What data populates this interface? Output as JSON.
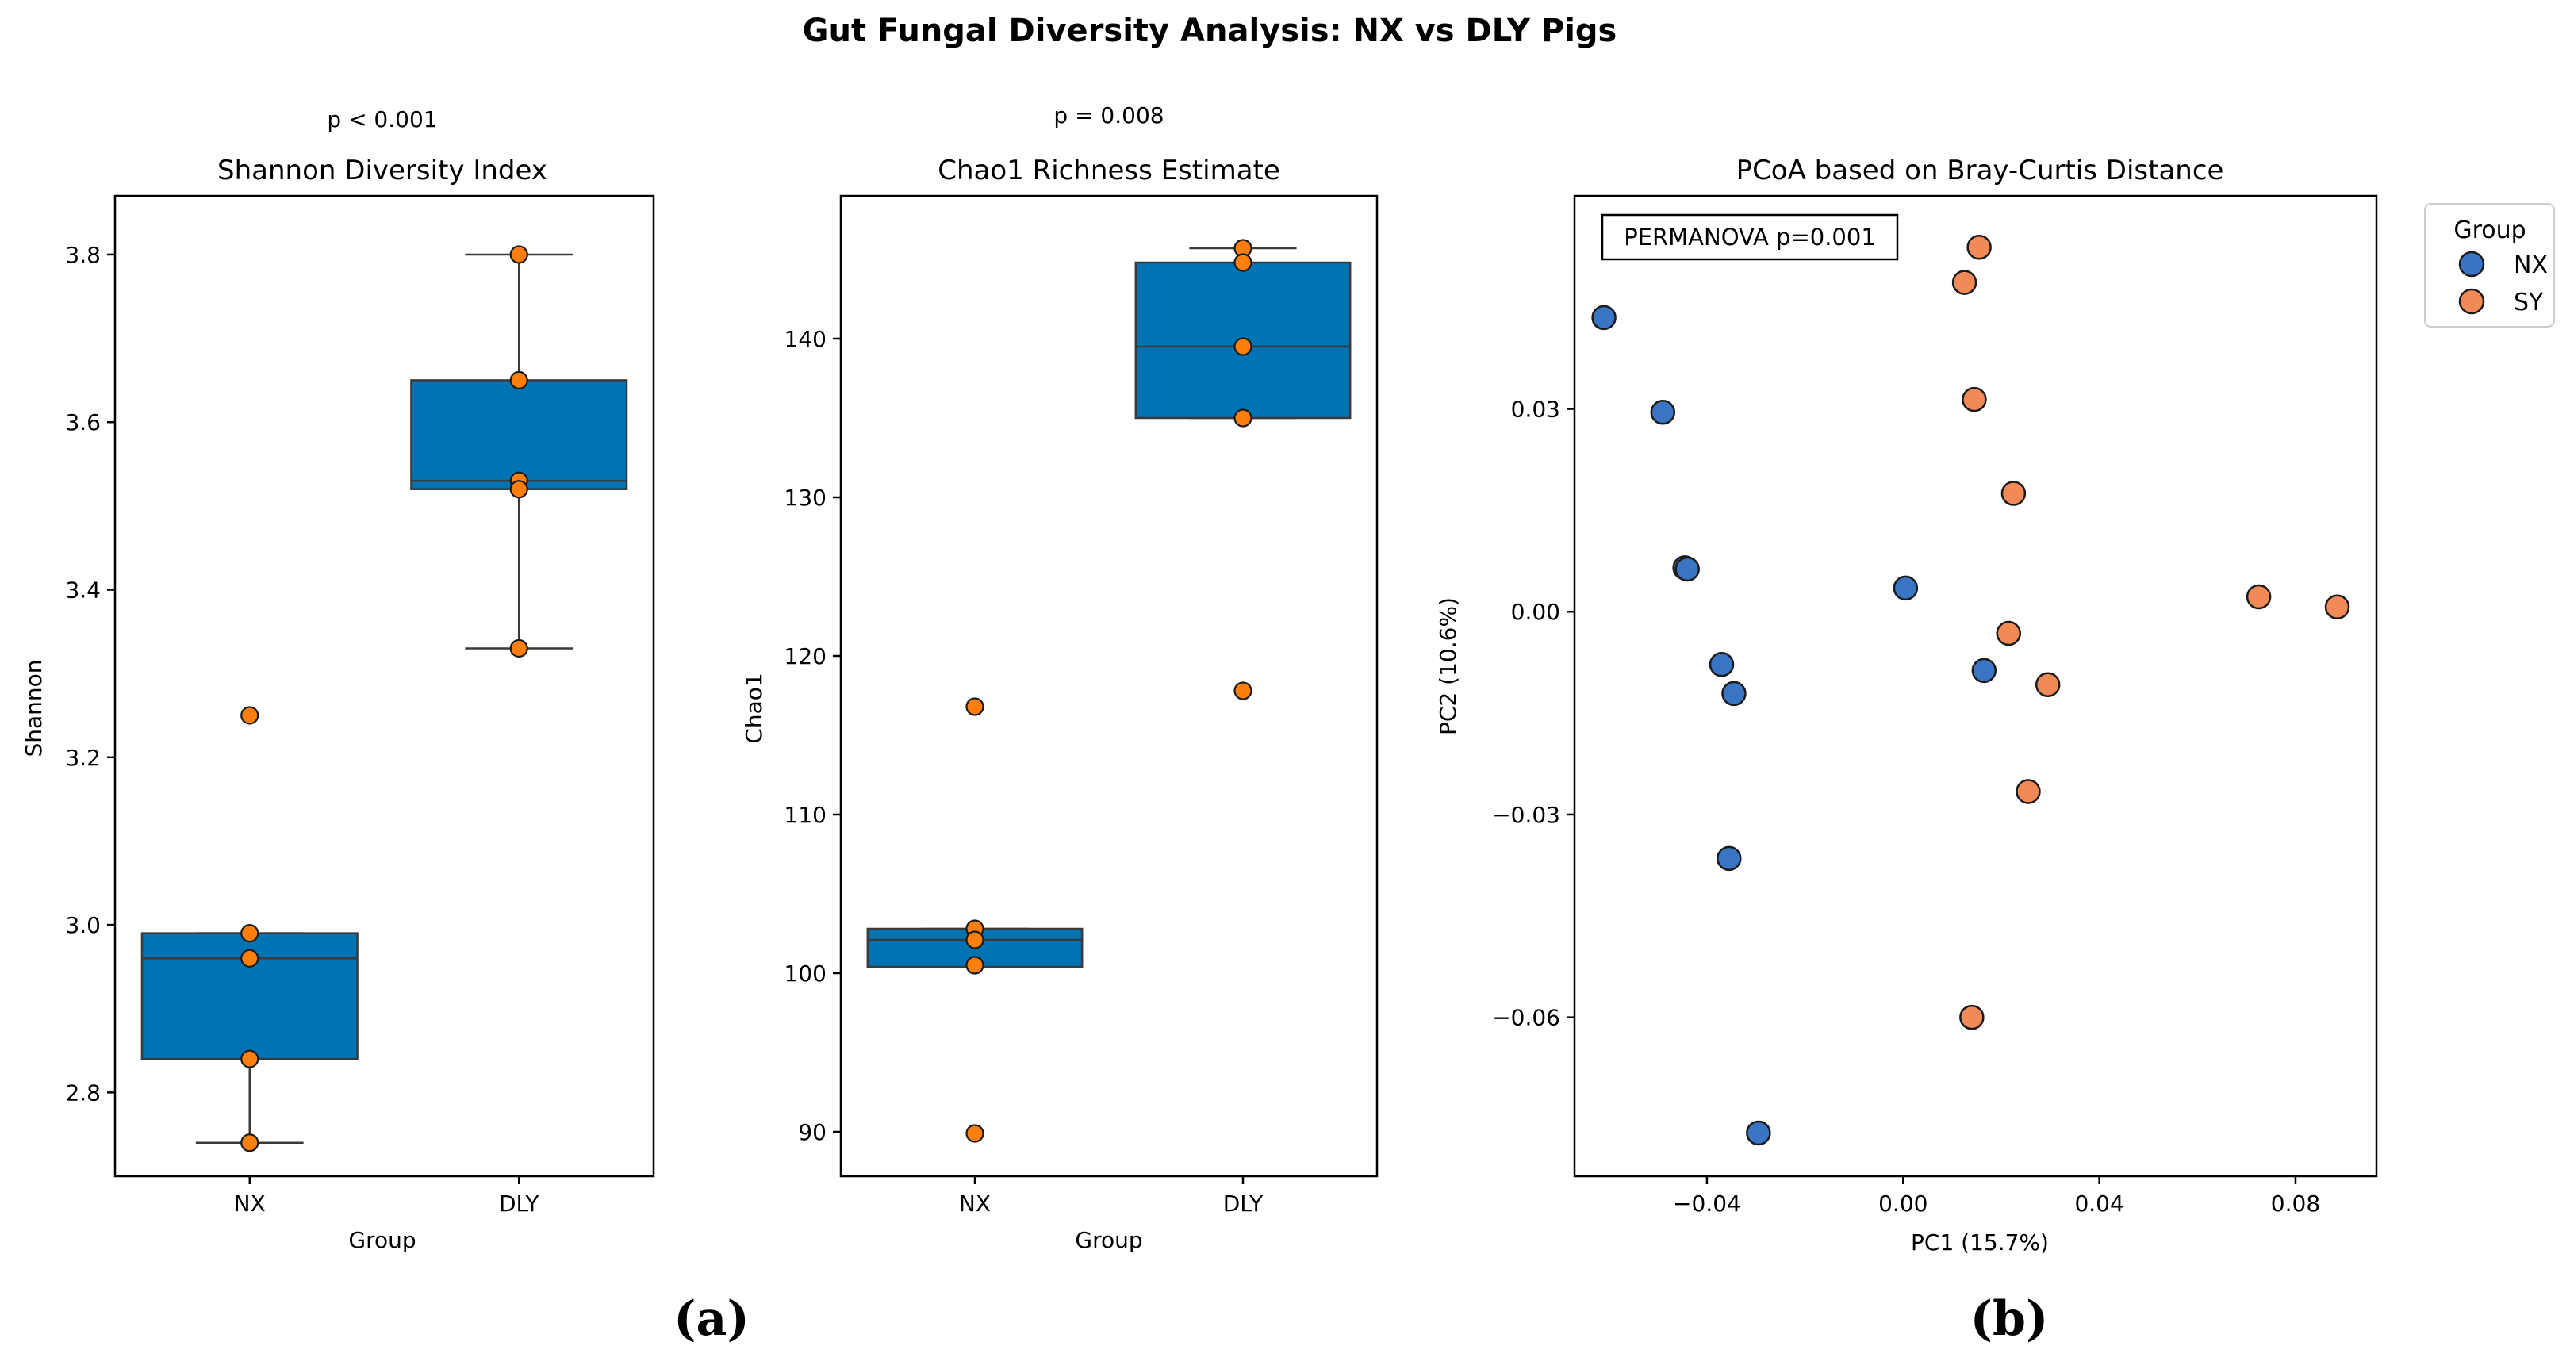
{
  "suptitle": "Gut Fungal Diversity Analysis: NX vs DLY Pigs",
  "panel_labels": [
    "(a)",
    "(b)"
  ],
  "colors": {
    "box_fill": "#0173b2",
    "box_edge": "#3a3a3a",
    "point_fill": "#ff7f0e",
    "nx": "#3a75c4",
    "sy": "#f28a57"
  },
  "chart_data": [
    {
      "type": "box",
      "title": "Shannon Diversity Index",
      "pvalue": "p < 0.001",
      "xlabel": "Group",
      "ylabel": "Shannon",
      "categories": [
        "NX",
        "DLY"
      ],
      "ylim": [
        2.7,
        3.87
      ],
      "yticks": [
        2.8,
        3.0,
        3.2,
        3.4,
        3.6,
        3.8
      ],
      "ytick_labels": [
        "2.8",
        "3.0",
        "3.2",
        "3.4",
        "3.6",
        "3.8"
      ],
      "boxes": [
        {
          "whislo": 2.74,
          "q1": 2.84,
          "med": 2.96,
          "q3": 2.99,
          "whishi": 2.99
        },
        {
          "whislo": 3.33,
          "q1": 3.52,
          "med": 3.53,
          "q3": 3.65,
          "whishi": 3.8
        }
      ],
      "points": [
        [
          3.25,
          2.99,
          2.96,
          2.84,
          2.74
        ],
        [
          3.8,
          3.65,
          3.53,
          3.52,
          3.33
        ]
      ]
    },
    {
      "type": "box",
      "title": "Chao1 Richness Estimate",
      "pvalue": "p = 0.008",
      "xlabel": "Group",
      "ylabel": "Chao1",
      "categories": [
        "NX",
        "DLY"
      ],
      "ylim": [
        87.2,
        149.0
      ],
      "yticks": [
        90,
        100,
        110,
        120,
        130,
        140
      ],
      "ytick_labels": [
        "90",
        "100",
        "110",
        "120",
        "130",
        "140"
      ],
      "boxes": [
        {
          "whislo": 100.4,
          "q1": 100.4,
          "med": 102.1,
          "q3": 102.8,
          "whishi": 102.8
        },
        {
          "whislo": 135.0,
          "q1": 135.0,
          "med": 139.5,
          "q3": 144.8,
          "whishi": 145.7
        }
      ],
      "points": [
        [
          116.8,
          102.8,
          102.1,
          100.5,
          89.9
        ],
        [
          145.7,
          144.8,
          139.5,
          135.0,
          117.8
        ]
      ]
    },
    {
      "type": "scatter",
      "title": "PCoA based on Bray-Curtis Distance",
      "xlabel": "PC1 (15.7%)",
      "ylabel": "PC2 (10.6%)",
      "xlim": [
        -0.067,
        0.0965
      ],
      "ylim": [
        -0.0835,
        0.0615
      ],
      "xticks": [
        -0.04,
        0.0,
        0.04,
        0.08
      ],
      "xtick_labels": [
        "−0.04",
        "0.00",
        "0.04",
        "0.08"
      ],
      "yticks": [
        -0.06,
        -0.03,
        0.0,
        0.03
      ],
      "ytick_labels": [
        "−0.06",
        "−0.03",
        "0.00",
        "0.03"
      ],
      "annotation": "PERMANOVA p=0.001",
      "legend": {
        "title": "Group",
        "position": "outside-right",
        "entries": [
          "NX",
          "SY"
        ]
      },
      "series": [
        {
          "name": "NX",
          "x": [
            -0.061,
            -0.049,
            -0.0445,
            -0.044,
            -0.037,
            -0.0345,
            -0.0355,
            -0.0295,
            0.0005,
            0.0165
          ],
          "y": [
            0.0435,
            0.0295,
            0.0065,
            0.0063,
            -0.0078,
            -0.0121,
            -0.0365,
            -0.0771,
            0.0035,
            -0.0087
          ]
        },
        {
          "name": "SY",
          "x": [
            0.0155,
            0.0125,
            0.0145,
            0.0225,
            0.0215,
            0.0295,
            0.0255,
            0.0725,
            0.0885,
            0.014
          ],
          "y": [
            0.0539,
            0.0487,
            0.0314,
            0.0175,
            -0.0032,
            -0.0108,
            -0.0266,
            0.0022,
            0.0007,
            -0.06
          ]
        }
      ]
    }
  ]
}
